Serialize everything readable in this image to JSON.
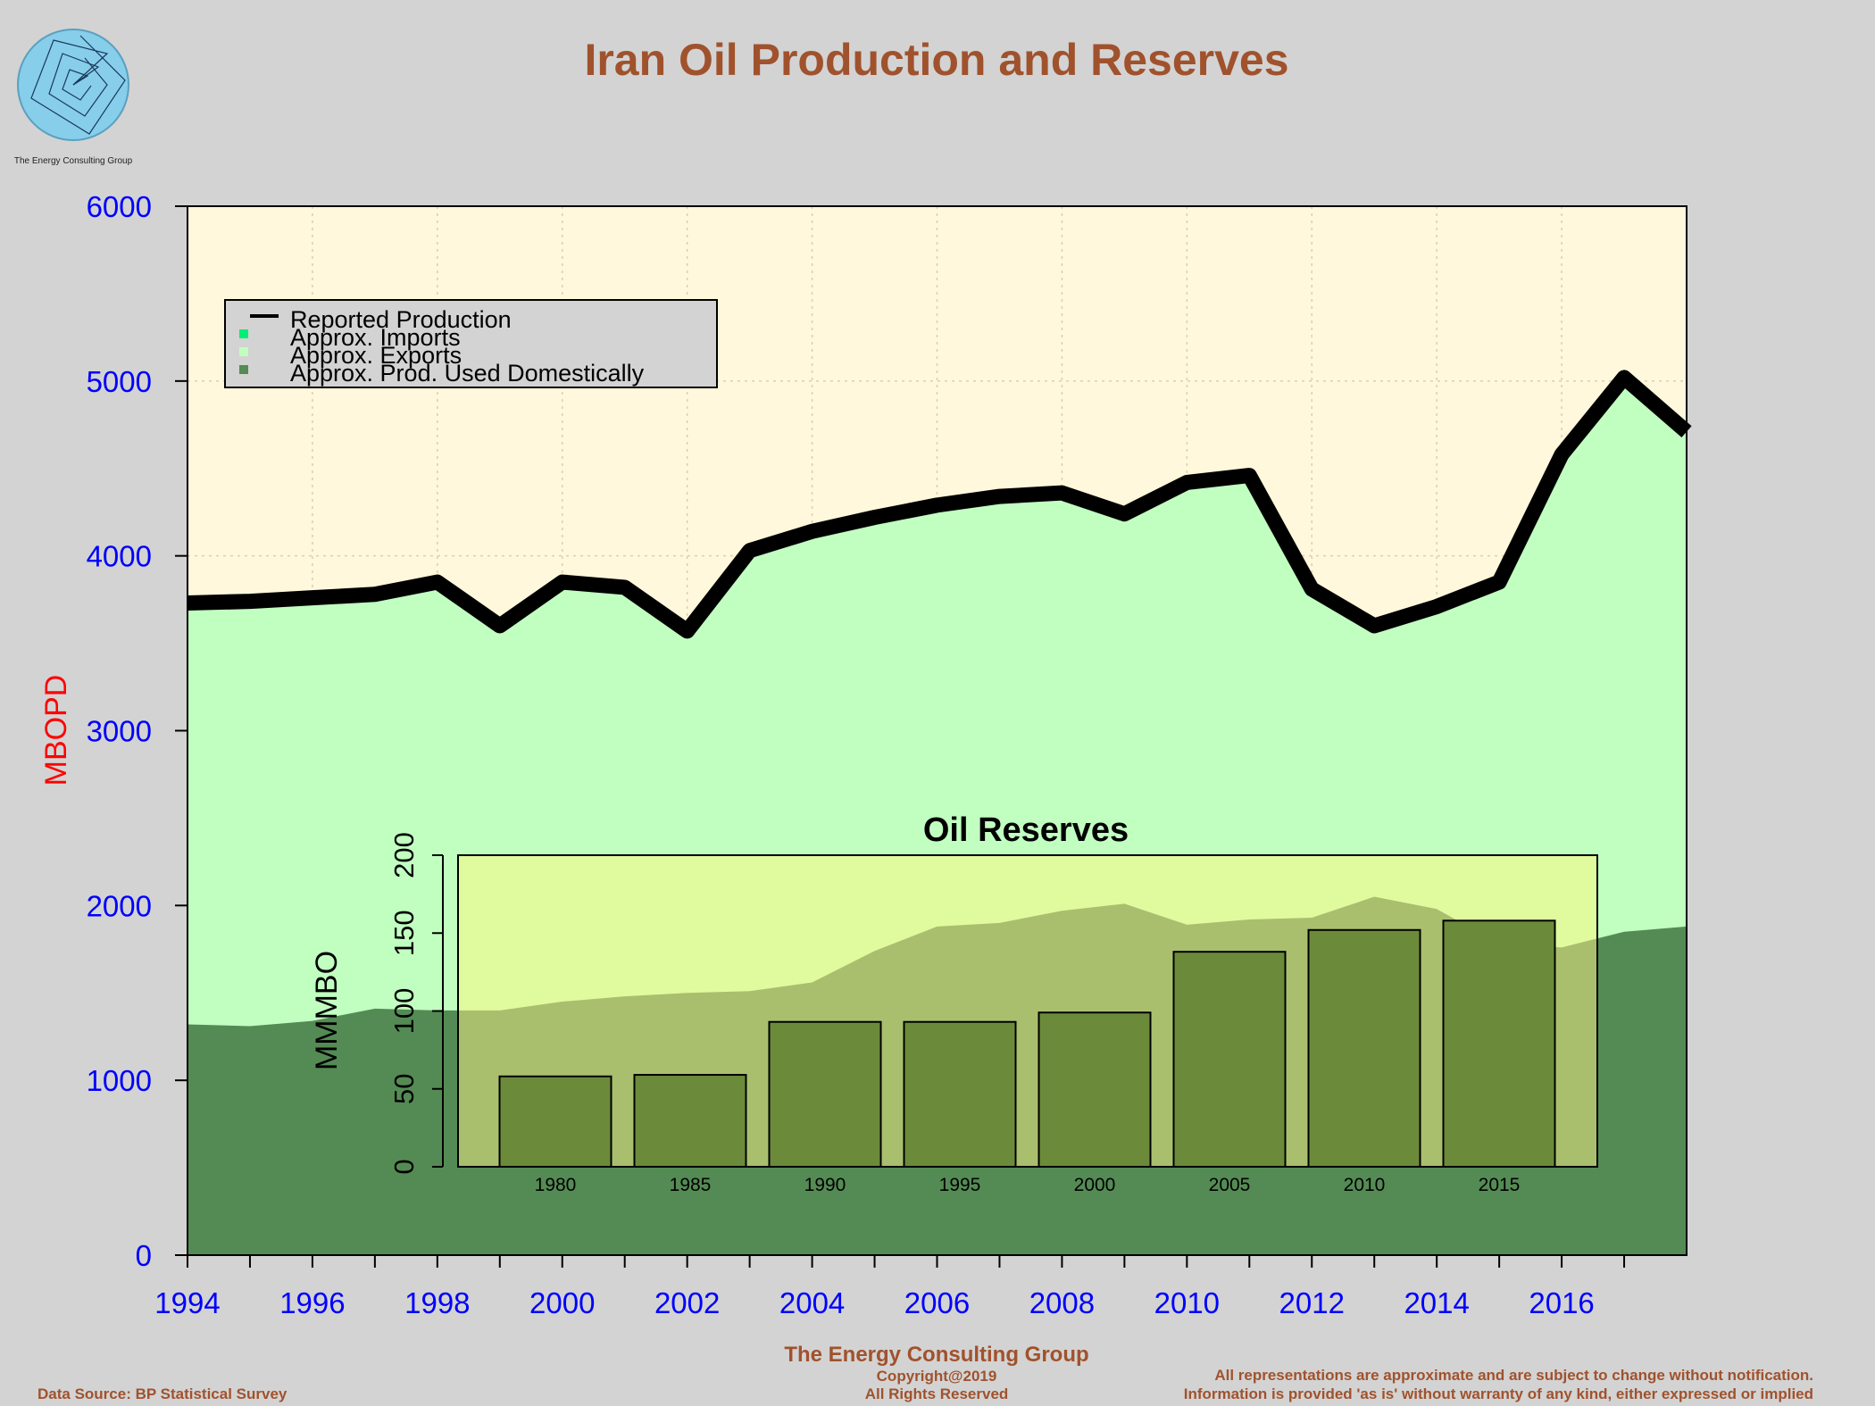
{
  "logo": {
    "caption": "The Energy Consulting Group"
  },
  "footer": {
    "center_title": "The Energy Consulting Group",
    "copyright": "Copyright@2019",
    "rights": "All Rights Reserved",
    "source": "Data Source: BP Statistical Survey",
    "disclaimer_1": "All representations are approximate and are subject to change without notification.",
    "disclaimer_2": "Information is provided 'as is' without warranty of any kind, either expressed or implied"
  },
  "colors": {
    "background": "#d3d3d3",
    "plot_bg": "#fff8dc",
    "exports": "#c1ffc1",
    "domestic": "#548b54",
    "imports": "#00ee76",
    "production_line": "#000000",
    "title": "#a0522d",
    "axis_labels": "#0000ff",
    "ylabel": "#ff0000",
    "inset_bg": "#e0fa9e",
    "inset_area": "#aabf6e",
    "inset_bars": "#6b8b3a"
  },
  "chart_data": [
    {
      "type": "area",
      "title": "Iran Oil Production and Reserves",
      "xlabel": "",
      "ylabel": "MBOPD",
      "xlim": [
        1994,
        2018
      ],
      "ylim": [
        0,
        6000
      ],
      "x_ticks": [
        1994,
        1996,
        1998,
        2000,
        2002,
        2004,
        2006,
        2008,
        2010,
        2012,
        2014,
        2016
      ],
      "y_ticks": [
        0,
        1000,
        2000,
        3000,
        4000,
        5000,
        6000
      ],
      "grid": true,
      "legend_position": "top-left",
      "legend": [
        "Reported Production",
        "Approx. Imports",
        "Approx. Exports",
        "Approx. Prod. Used Domestically"
      ],
      "x": [
        1994,
        1995,
        1996,
        1997,
        1998,
        1999,
        2000,
        2001,
        2002,
        2003,
        2004,
        2005,
        2006,
        2007,
        2008,
        2009,
        2010,
        2011,
        2012,
        2013,
        2014,
        2015,
        2016,
        2017,
        2018
      ],
      "series": [
        {
          "name": "Reported Production",
          "values": [
            3730,
            3740,
            3760,
            3780,
            3850,
            3600,
            3850,
            3820,
            3570,
            4030,
            4140,
            4220,
            4290,
            4340,
            4360,
            4240,
            4420,
            4460,
            3810,
            3600,
            3710,
            3850,
            4580,
            5020,
            4710
          ]
        },
        {
          "name": "Approx. Prod. Used Domestically",
          "values": [
            1320,
            1310,
            1340,
            1410,
            1400,
            1400,
            1450,
            1480,
            1500,
            1510,
            1560,
            1740,
            1880,
            1900,
            1970,
            2010,
            1890,
            1920,
            1930,
            2050,
            1980,
            1780,
            1760,
            1850,
            1880
          ]
        },
        {
          "name": "Approx. Imports",
          "values": [
            0,
            0,
            0,
            0,
            0,
            0,
            0,
            0,
            0,
            0,
            0,
            0,
            0,
            0,
            0,
            0,
            0,
            0,
            0,
            0,
            0,
            0,
            0,
            0,
            0
          ]
        }
      ]
    },
    {
      "type": "bar",
      "title": "Oil Reserves",
      "xlabel": "",
      "ylabel": "MMMBO",
      "ylim": [
        0,
        200
      ],
      "y_ticks": [
        0,
        50,
        100,
        150,
        200
      ],
      "categories": [
        "1980",
        "1985",
        "1990",
        "1995",
        "2000",
        "2005",
        "2010",
        "2015"
      ],
      "values": [
        58,
        59,
        93,
        93,
        99,
        138,
        152,
        158
      ]
    }
  ]
}
